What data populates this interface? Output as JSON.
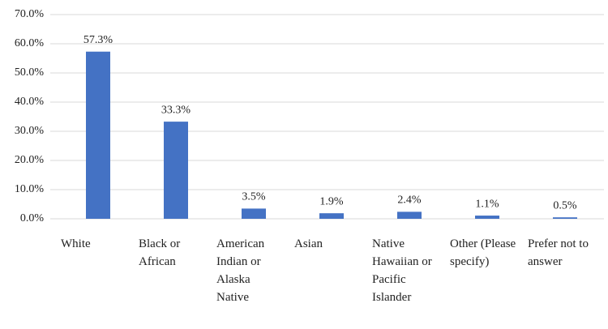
{
  "chart_data": {
    "type": "bar",
    "categories": [
      "White",
      "Black or African",
      "American Indian or Alaska Native",
      "Asian",
      "Native Hawaiian or Pacific Islander",
      "Other (Please specify)",
      "Prefer not to answer"
    ],
    "values": [
      57.3,
      33.3,
      3.5,
      1.9,
      2.4,
      1.1,
      0.5
    ],
    "value_labels": [
      "57.3%",
      "33.3%",
      "3.5%",
      "1.9%",
      "2.4%",
      "1.1%",
      "0.5%"
    ],
    "color": "#4472c4",
    "ylim": [
      0,
      70
    ],
    "yticks": [
      {
        "value": 0,
        "label": "0.0%"
      },
      {
        "value": 10,
        "label": "10.0%"
      },
      {
        "value": 20,
        "label": "20.0%"
      },
      {
        "value": 30,
        "label": "30.0%"
      },
      {
        "value": 40,
        "label": "40.0%"
      },
      {
        "value": 50,
        "label": "50.0%"
      },
      {
        "value": 60,
        "label": "60.0%"
      },
      {
        "value": 70,
        "label": "70.0%"
      }
    ],
    "grid": true
  }
}
